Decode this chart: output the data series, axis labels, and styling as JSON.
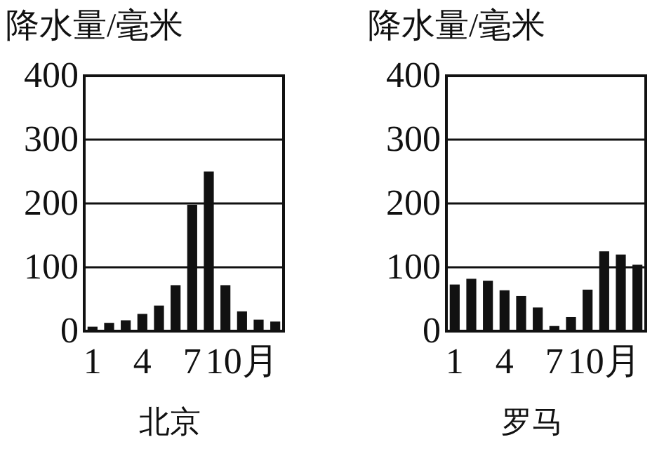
{
  "chart_data": [
    {
      "type": "bar",
      "title": "北京",
      "ylabel": "降水量/毫米",
      "categories": [
        "1",
        null,
        null,
        "4",
        null,
        null,
        "7",
        null,
        null,
        "10月",
        null,
        null
      ],
      "values": [
        7,
        13,
        17,
        27,
        40,
        72,
        198,
        250,
        72,
        31,
        18,
        15
      ],
      "color": "#111111",
      "ylim": [
        0,
        400
      ],
      "yticks": [
        0,
        100,
        200,
        300,
        400
      ],
      "grid": "y"
    },
    {
      "type": "bar",
      "title": "罗马",
      "ylabel": "降水量/毫米",
      "categories": [
        "1",
        null,
        null,
        "4",
        null,
        null,
        "7",
        null,
        null,
        "10月",
        null,
        null
      ],
      "values": [
        73,
        82,
        79,
        64,
        55,
        37,
        8,
        22,
        65,
        125,
        120,
        104
      ],
      "color": "#111111",
      "ylim": [
        0,
        400
      ],
      "yticks": [
        0,
        100,
        200,
        300,
        400
      ],
      "grid": "y"
    }
  ]
}
